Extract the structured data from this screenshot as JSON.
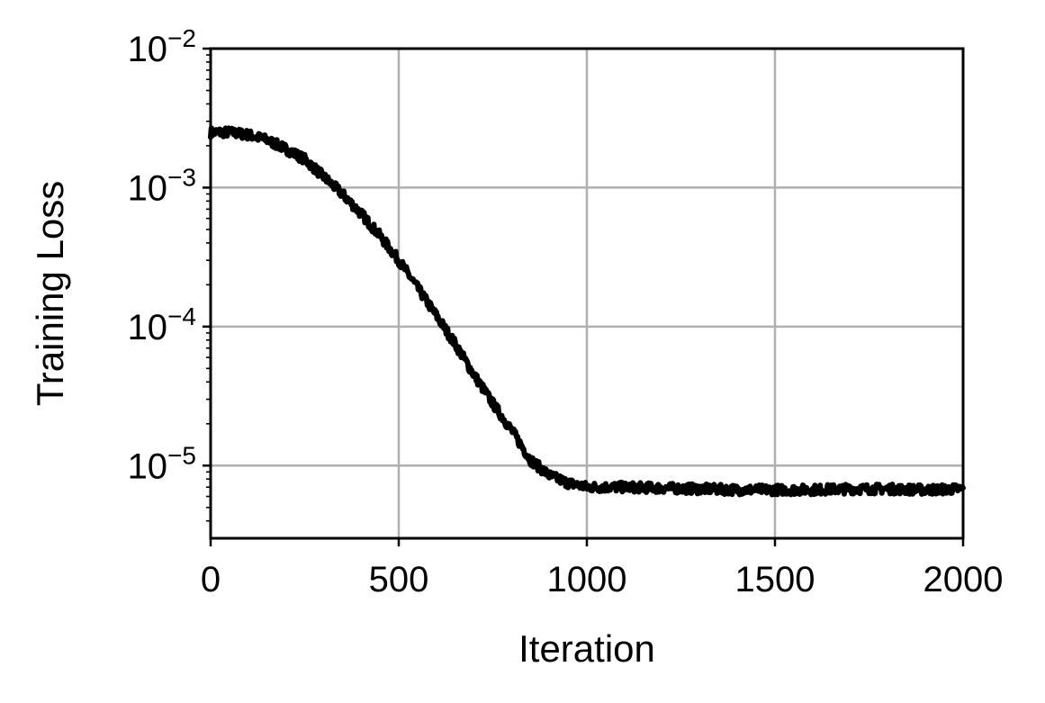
{
  "chart_data": {
    "type": "line",
    "xlabel": "Iteration",
    "ylabel": "Training Loss",
    "xlim": [
      0,
      2000
    ],
    "ylim": [
      3e-06,
      0.01
    ],
    "yscale": "log",
    "grid": true,
    "xticks": [
      "0",
      "500",
      "1000",
      "1500",
      "2000"
    ],
    "yticks": [
      {
        "base": "10",
        "exp": "−2",
        "value": 0.01
      },
      {
        "base": "10",
        "exp": "−3",
        "value": 0.001
      },
      {
        "base": "10",
        "exp": "−4",
        "value": 0.0001
      },
      {
        "base": "10",
        "exp": "−5",
        "value": 1e-05
      }
    ],
    "series": [
      {
        "color": "#000000",
        "x": [
          0,
          50,
          100,
          150,
          200,
          250,
          300,
          350,
          400,
          450,
          500,
          550,
          600,
          650,
          700,
          750,
          800,
          850,
          900,
          950,
          1000,
          1100,
          1200,
          1300,
          1400,
          1500,
          1600,
          1700,
          1800,
          1900,
          2000
        ],
        "y": [
          0.0025,
          0.0025,
          0.0024,
          0.0022,
          0.0019,
          0.0016,
          0.0012,
          0.0009,
          0.00065,
          0.00045,
          0.0003,
          0.00019,
          0.00012,
          7.5e-05,
          4.5e-05,
          2.8e-05,
          1.8e-05,
          1.1e-05,
          8.5e-06,
          7.5e-06,
          7e-06,
          7e-06,
          6.9e-06,
          6.8e-06,
          6.7e-06,
          6.7e-06,
          6.7e-06,
          6.8e-06,
          6.8e-06,
          6.7e-06,
          6.8e-06
        ]
      }
    ]
  }
}
